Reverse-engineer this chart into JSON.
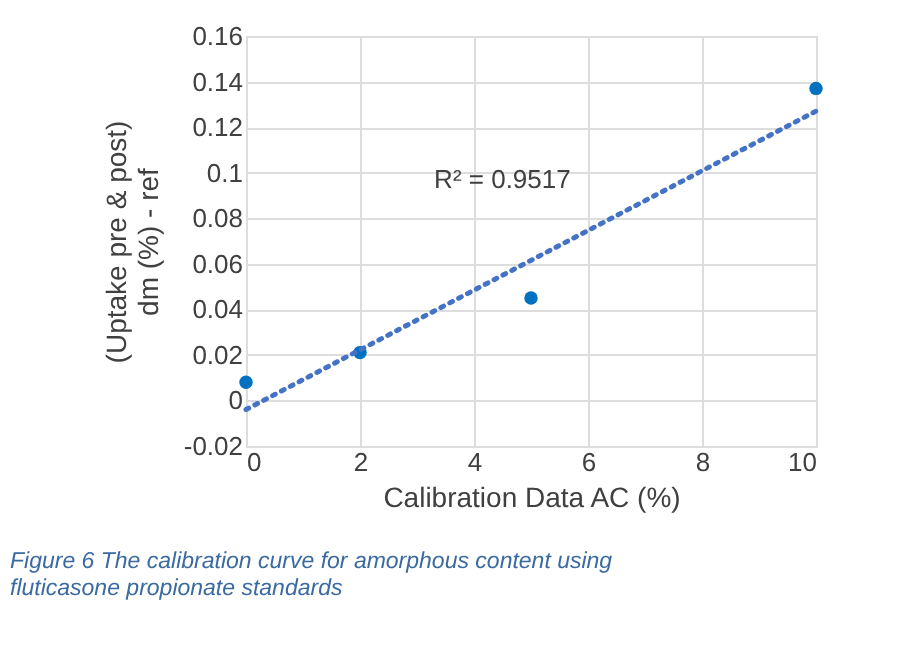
{
  "chart_data": {
    "type": "scatter",
    "xlabel": "Calibration Data AC (%)",
    "ylabel": "(Uptake pre & post)\ndm (%) - ref",
    "x": [
      0,
      2,
      5,
      10
    ],
    "series": [
      {
        "color": "#0070c0",
        "marker": "circle",
        "values": [
          0.008,
          0.021,
          0.045,
          0.137
        ]
      },
      {
        "type": "line",
        "color": "#4472c4",
        "line_style": "dotted",
        "x": [
          0,
          10
        ],
        "values": [
          -0.004,
          0.127
        ]
      }
    ],
    "xlim": [
      0,
      10
    ],
    "xticks": [
      0,
      2,
      4,
      6,
      8,
      10
    ],
    "ylim": [
      -0.02,
      0.16
    ],
    "yticks": [
      -0.02,
      0,
      0.02,
      0.04,
      0.06,
      0.08,
      0.1,
      0.12,
      0.14,
      0.16
    ],
    "grid": true,
    "annotations": [
      "R² = 0.9517",
      "Figure 6 The calibration curve for amorphous content using\nfluticasone propionate standards"
    ]
  }
}
